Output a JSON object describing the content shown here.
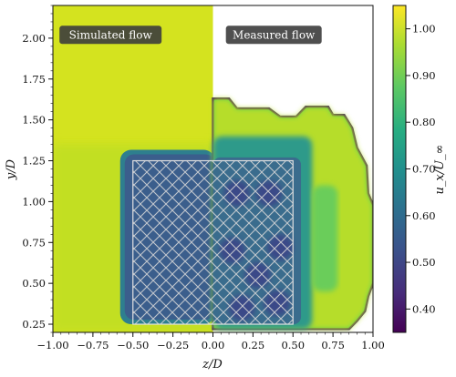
{
  "chart_data": {
    "type": "heatmap",
    "title": "",
    "xlabel": "z/D",
    "ylabel": "y/D",
    "xlim": [
      -1.0,
      1.0
    ],
    "ylim": [
      0.2,
      2.2
    ],
    "xticks": [
      "−1.00",
      "−0.75",
      "−0.50",
      "−0.25",
      "0.00",
      "0.25",
      "0.50",
      "0.75",
      "1.00"
    ],
    "xtick_values": [
      -1.0,
      -0.75,
      -0.5,
      -0.25,
      0.0,
      0.25,
      0.5,
      0.75,
      1.0
    ],
    "yticks": [
      "0.25",
      "0.50",
      "0.75",
      "1.00",
      "1.25",
      "1.50",
      "1.75",
      "2.00"
    ],
    "ytick_values": [
      0.25,
      0.5,
      0.75,
      1.0,
      1.25,
      1.5,
      1.75,
      2.0
    ],
    "colorbar": {
      "label": "u_x/U_∞",
      "range": [
        0.35,
        1.05
      ],
      "ticks": [
        "0.40",
        "0.50",
        "0.60",
        "0.70",
        "0.80",
        "0.90",
        "1.00"
      ],
      "tick_values": [
        0.4,
        0.5,
        0.6,
        0.7,
        0.8,
        0.9,
        1.0
      ],
      "colormap": "viridis"
    },
    "annotations": [
      {
        "text": "Simulated flow",
        "x": -0.64,
        "y": 2.02
      },
      {
        "text": "Measured flow",
        "x": 0.38,
        "y": 2.02
      }
    ],
    "split_z": 0.0,
    "porous_block": {
      "z": [
        -0.5,
        0.5
      ],
      "y": [
        0.25,
        1.25
      ],
      "pattern": "crosshatch"
    },
    "simulated": {
      "freestream": 1.0,
      "wake_min": 0.52,
      "wake_z": [
        -0.5,
        0.0
      ],
      "wake_y": [
        0.25,
        1.25
      ]
    },
    "measured": {
      "freestream": 1.0,
      "wake_min": 0.45,
      "extent_z": [
        0.0,
        1.0
      ],
      "extent_y": [
        0.2,
        1.65
      ]
    }
  }
}
